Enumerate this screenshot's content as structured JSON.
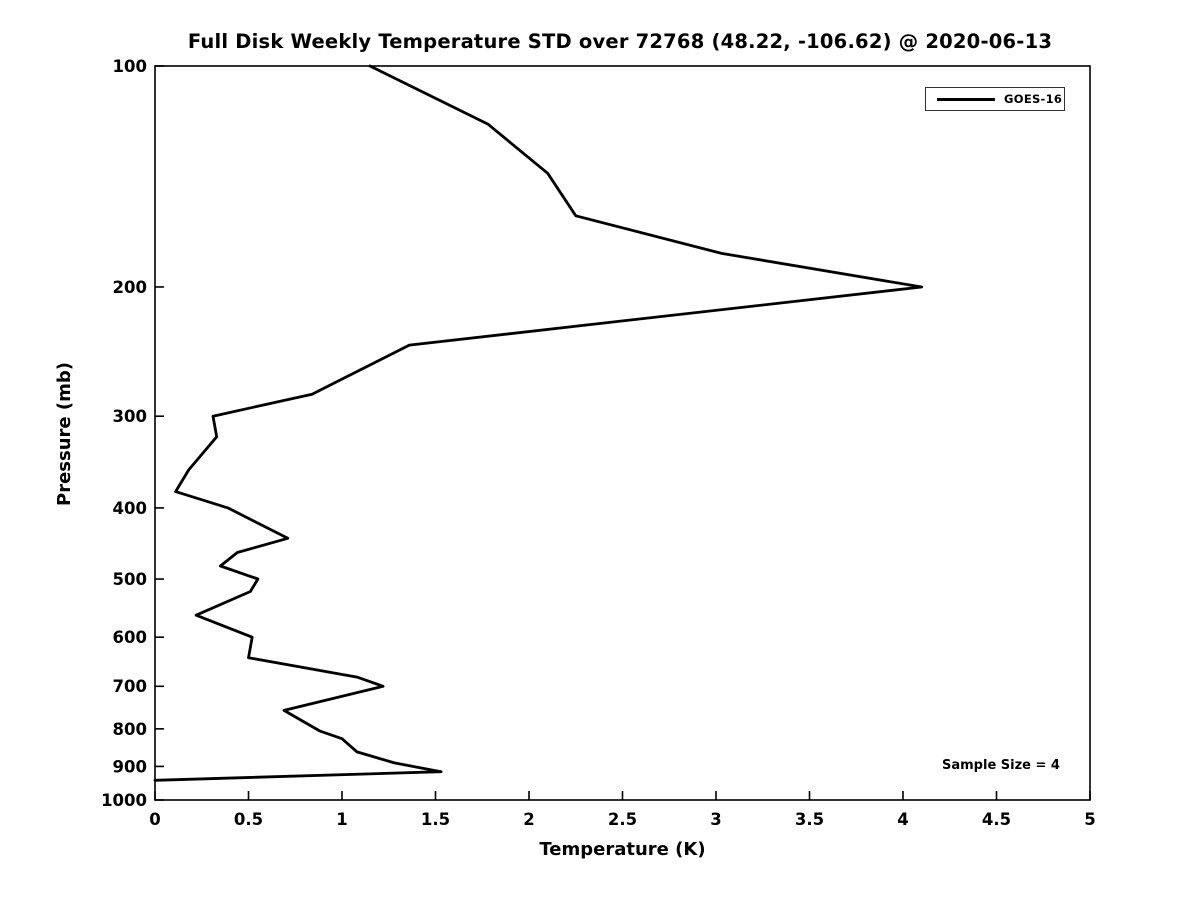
{
  "chart_data": {
    "type": "line",
    "title": "Full Disk Weekly Temperature STD over 72768 (48.22, -106.62) @ 2020-06-13",
    "xlabel": "Temperature (K)",
    "ylabel": "Pressure (mb)",
    "xlim": [
      0,
      5
    ],
    "ylim": [
      100,
      1000
    ],
    "yscale": "log",
    "y_axis_inverted": true,
    "grid": false,
    "xticks": [
      0,
      0.5,
      1,
      1.5,
      2,
      2.5,
      3,
      3.5,
      4,
      4.5,
      5
    ],
    "yticks": [
      100,
      200,
      300,
      400,
      500,
      600,
      700,
      800,
      900,
      1000
    ],
    "legend_position": "upper right",
    "annotation": "Sample Size = 4",
    "axis_color": "#000000",
    "series": [
      {
        "name": "GOES-16",
        "color": "#000000",
        "pressure_mb": [
          100,
          120,
          140,
          160,
          180,
          200,
          240,
          280,
          300,
          320,
          355,
          380,
          400,
          440,
          460,
          480,
          500,
          520,
          560,
          600,
          640,
          680,
          700,
          755,
          805,
          825,
          860,
          890,
          915,
          940
        ],
        "temperature_k": [
          1.15,
          1.78,
          2.1,
          2.25,
          3.03,
          4.1,
          1.36,
          0.84,
          0.31,
          0.33,
          0.18,
          0.11,
          0.39,
          0.71,
          0.44,
          0.35,
          0.55,
          0.51,
          0.22,
          0.52,
          0.5,
          1.08,
          1.22,
          0.69,
          0.88,
          1.0,
          1.08,
          1.28,
          1.53,
          0.0
        ]
      }
    ]
  }
}
